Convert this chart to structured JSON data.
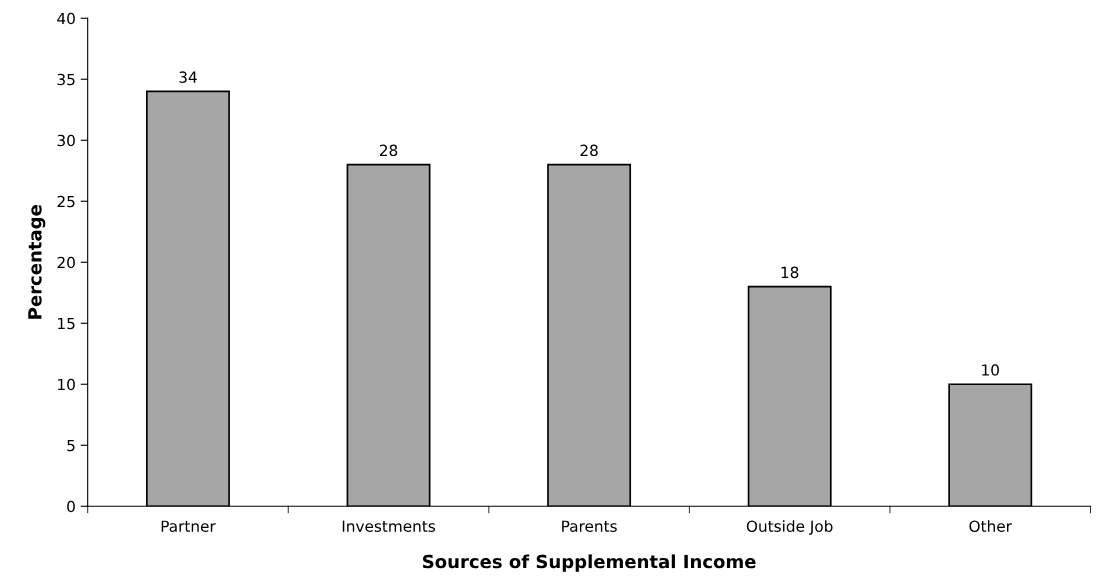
{
  "chart_data": {
    "type": "bar",
    "xlabel": "Sources of Supplemental Income",
    "ylabel": "Percentage",
    "categories": [
      "Partner",
      "Investments",
      "Parents",
      "Outside Job",
      "Other"
    ],
    "values": [
      34,
      28,
      28,
      18,
      10
    ],
    "color": "#a6a6a6",
    "ylim": [
      0,
      40
    ],
    "yticks": [
      0,
      5,
      10,
      15,
      20,
      25,
      30,
      35,
      40
    ],
    "grid": false,
    "data_labels": true
  }
}
